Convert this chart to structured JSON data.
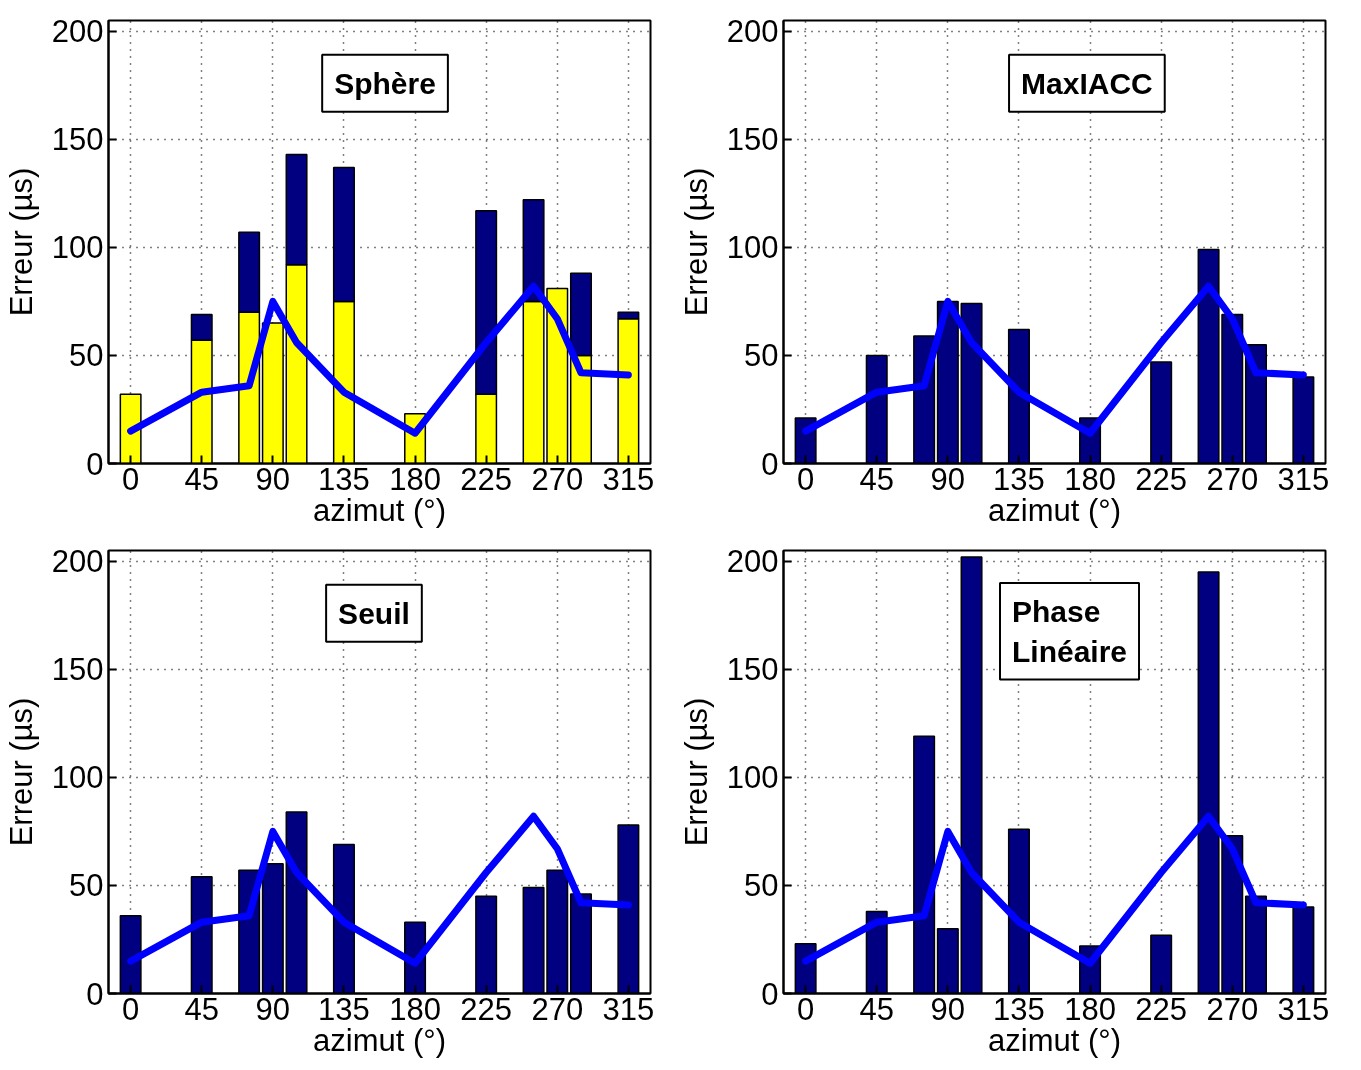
{
  "chart_data": [
    {
      "type": "bar",
      "title": "Sphère",
      "xlabel": "azimut (°)",
      "ylabel": "Erreur (µs)",
      "stacked": true,
      "x": [
        0,
        45,
        75,
        90,
        105,
        135,
        180,
        225,
        255,
        270,
        285,
        315
      ],
      "series": [
        {
          "color": "#ffff00",
          "values": [
            32,
            57,
            70,
            65,
            92,
            75,
            23,
            32,
            75,
            81,
            50,
            67
          ]
        },
        {
          "color": "#000080",
          "values": [
            null,
            12,
            37,
            null,
            51,
            62,
            null,
            85,
            47,
            null,
            38,
            3
          ]
        },
        {
          "type": "line",
          "color": "#0000ff",
          "values": [
            15,
            33,
            36,
            75,
            56,
            33,
            14,
            56,
            82,
            67,
            42,
            41
          ]
        }
      ],
      "xlim": [
        -14,
        329
      ],
      "ylim": [
        0,
        205
      ],
      "xticks": [
        0,
        45,
        90,
        135,
        180,
        225,
        270,
        315
      ],
      "yticks": [
        0,
        50,
        100,
        150,
        200
      ],
      "grid": true
    },
    {
      "type": "bar",
      "title": "MaxIACC",
      "xlabel": "azimut (°)",
      "ylabel": "Erreur (µs)",
      "x": [
        0,
        45,
        75,
        90,
        105,
        135,
        180,
        225,
        255,
        270,
        285,
        315
      ],
      "series": [
        {
          "color": "#000080",
          "values": [
            21,
            50,
            59,
            75,
            74,
            62,
            21,
            47,
            99,
            69,
            55,
            40
          ]
        },
        {
          "type": "line",
          "color": "#0000ff",
          "values": [
            15,
            33,
            36,
            75,
            56,
            33,
            14,
            56,
            82,
            67,
            42,
            41
          ]
        }
      ],
      "xlim": [
        -14,
        329
      ],
      "ylim": [
        0,
        205
      ],
      "xticks": [
        0,
        45,
        90,
        135,
        180,
        225,
        270,
        315
      ],
      "yticks": [
        0,
        50,
        100,
        150,
        200
      ],
      "grid": true
    },
    {
      "type": "bar",
      "title": "Seuil",
      "xlabel": "azimut (°)",
      "ylabel": "Erreur (µs)",
      "x": [
        0,
        45,
        75,
        90,
        105,
        135,
        180,
        225,
        255,
        270,
        285,
        315
      ],
      "series": [
        {
          "color": "#000080",
          "values": [
            36,
            54,
            57,
            60,
            84,
            69,
            33,
            45,
            49,
            57,
            46,
            78
          ]
        },
        {
          "type": "line",
          "color": "#0000ff",
          "values": [
            15,
            33,
            36,
            75,
            56,
            33,
            14,
            56,
            82,
            67,
            42,
            41
          ]
        }
      ],
      "xlim": [
        -14,
        329
      ],
      "ylim": [
        0,
        205
      ],
      "xticks": [
        0,
        45,
        90,
        135,
        180,
        225,
        270,
        315
      ],
      "yticks": [
        0,
        50,
        100,
        150,
        200
      ],
      "grid": true
    },
    {
      "type": "bar",
      "title": "Phase\nLinéaire",
      "xlabel": "azimut (°)",
      "ylabel": "Erreur (µs)",
      "x": [
        0,
        45,
        75,
        90,
        105,
        135,
        180,
        225,
        255,
        270,
        285,
        315
      ],
      "series": [
        {
          "color": "#000080",
          "values": [
            23,
            38,
            119,
            30,
            202,
            76,
            22,
            27,
            195,
            73,
            45,
            40
          ]
        },
        {
          "type": "line",
          "color": "#0000ff",
          "values": [
            15,
            33,
            36,
            75,
            56,
            33,
            14,
            56,
            82,
            67,
            42,
            41
          ]
        }
      ],
      "xlim": [
        -14,
        329
      ],
      "ylim": [
        0,
        205
      ],
      "xticks": [
        0,
        45,
        90,
        135,
        180,
        225,
        270,
        315
      ],
      "yticks": [
        0,
        50,
        100,
        150,
        200
      ],
      "grid": true
    }
  ]
}
